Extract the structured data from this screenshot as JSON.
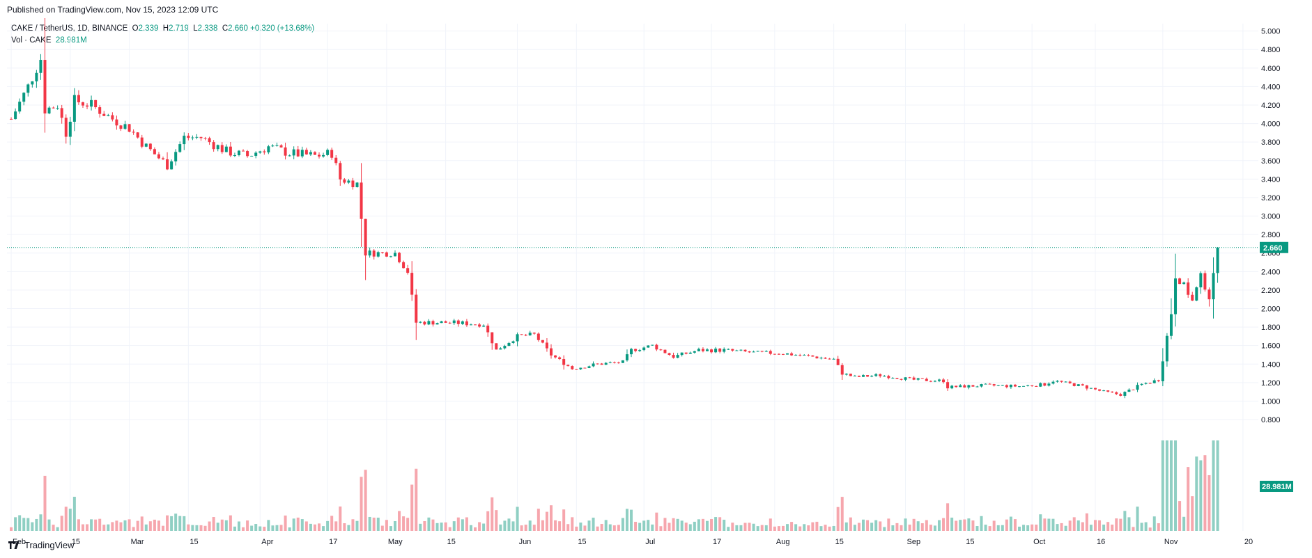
{
  "header": {
    "published": "Published on TradingView.com, Nov 15, 2023 12:09 UTC"
  },
  "legend": {
    "symbol": "CAKE / TetherUS, 1D, BINANCE",
    "o_label": "O",
    "o_value": "2.339",
    "h_label": "H",
    "h_value": "2.719",
    "l_label": "L",
    "l_value": "2.338",
    "c_label": "C",
    "c_value": "2.660",
    "change": "+0.320 (+13.68%)",
    "vol_label": "Vol · CAKE",
    "vol_value": "28.981M"
  },
  "footer": {
    "brand": "TradingView"
  },
  "colors": {
    "up": "#089981",
    "down": "#f23645",
    "up_vol": "#8fcfc3",
    "down_vol": "#f6a6ad",
    "grid": "#f0f3fa",
    "last_price_tag": "#089981"
  },
  "chart_data": {
    "type": "candlestick",
    "symbol": "CAKE / TetherUS",
    "interval": "1D",
    "exchange": "BINANCE",
    "y_axis": {
      "ticks": [
        "5.000",
        "4.800",
        "4.600",
        "4.400",
        "4.200",
        "4.000",
        "3.800",
        "3.600",
        "3.400",
        "3.200",
        "3.000",
        "2.800",
        "2.600",
        "2.400",
        "2.200",
        "2.000",
        "1.800",
        "1.600",
        "1.400",
        "1.200",
        "1.000",
        "0.800"
      ],
      "range": [
        0.68,
        5.08
      ]
    },
    "x_axis": {
      "ticks": [
        "Feb",
        "15",
        "Mar",
        "15",
        "Apr",
        "17",
        "May",
        "15",
        "Jun",
        "15",
        "Jul",
        "17",
        "Aug",
        "15",
        "Sep",
        "15",
        "Oct",
        "16",
        "Nov",
        "20"
      ]
    },
    "last_price": "2.660",
    "last_volume": "28.981M",
    "close_series": [
      {
        "date": "2023-02-01",
        "close": 4.05
      },
      {
        "date": "2023-02-05",
        "close": 4.4
      },
      {
        "date": "2023-02-08",
        "close": 4.7
      },
      {
        "date": "2023-02-09",
        "close": 4.15
      },
      {
        "date": "2023-02-12",
        "close": 4.2
      },
      {
        "date": "2023-02-14",
        "close": 3.9
      },
      {
        "date": "2023-02-16",
        "close": 4.25
      },
      {
        "date": "2023-02-20",
        "close": 4.2
      },
      {
        "date": "2023-02-25",
        "close": 4.05
      },
      {
        "date": "2023-03-01",
        "close": 3.95
      },
      {
        "date": "2023-03-05",
        "close": 3.75
      },
      {
        "date": "2023-03-10",
        "close": 3.55
      },
      {
        "date": "2023-03-14",
        "close": 3.85
      },
      {
        "date": "2023-03-18",
        "close": 3.85
      },
      {
        "date": "2023-03-24",
        "close": 3.7
      },
      {
        "date": "2023-03-29",
        "close": 3.65
      },
      {
        "date": "2023-04-03",
        "close": 3.75
      },
      {
        "date": "2023-04-08",
        "close": 3.68
      },
      {
        "date": "2023-04-14",
        "close": 3.65
      },
      {
        "date": "2023-04-18",
        "close": 3.68
      },
      {
        "date": "2023-04-20",
        "close": 3.4
      },
      {
        "date": "2023-04-24",
        "close": 3.35
      },
      {
        "date": "2023-04-26",
        "close": 2.6
      },
      {
        "date": "2023-04-30",
        "close": 2.6
      },
      {
        "date": "2023-05-03",
        "close": 2.6
      },
      {
        "date": "2023-05-06",
        "close": 2.4
      },
      {
        "date": "2023-05-08",
        "close": 1.85
      },
      {
        "date": "2023-05-15",
        "close": 1.85
      },
      {
        "date": "2023-05-24",
        "close": 1.83
      },
      {
        "date": "2023-05-27",
        "close": 1.55
      },
      {
        "date": "2023-06-01",
        "close": 1.7
      },
      {
        "date": "2023-06-05",
        "close": 1.72
      },
      {
        "date": "2023-06-09",
        "close": 1.5
      },
      {
        "date": "2023-06-14",
        "close": 1.35
      },
      {
        "date": "2023-06-20",
        "close": 1.4
      },
      {
        "date": "2023-06-26",
        "close": 1.42
      },
      {
        "date": "2023-06-28",
        "close": 1.55
      },
      {
        "date": "2023-07-03",
        "close": 1.6
      },
      {
        "date": "2023-07-08",
        "close": 1.48
      },
      {
        "date": "2023-07-14",
        "close": 1.55
      },
      {
        "date": "2023-07-20",
        "close": 1.55
      },
      {
        "date": "2023-07-28",
        "close": 1.52
      },
      {
        "date": "2023-08-02",
        "close": 1.52
      },
      {
        "date": "2023-08-10",
        "close": 1.48
      },
      {
        "date": "2023-08-15",
        "close": 1.45
      },
      {
        "date": "2023-08-17",
        "close": 1.3
      },
      {
        "date": "2023-08-20",
        "close": 1.26
      },
      {
        "date": "2023-08-26",
        "close": 1.28
      },
      {
        "date": "2023-09-03",
        "close": 1.23
      },
      {
        "date": "2023-09-10",
        "close": 1.22
      },
      {
        "date": "2023-09-11",
        "close": 1.15
      },
      {
        "date": "2023-09-20",
        "close": 1.17
      },
      {
        "date": "2023-09-28",
        "close": 1.16
      },
      {
        "date": "2023-10-04",
        "close": 1.18
      },
      {
        "date": "2023-10-06",
        "close": 1.22
      },
      {
        "date": "2023-10-13",
        "close": 1.16
      },
      {
        "date": "2023-10-18",
        "close": 1.1
      },
      {
        "date": "2023-10-22",
        "close": 1.07
      },
      {
        "date": "2023-10-27",
        "close": 1.18
      },
      {
        "date": "2023-10-31",
        "close": 1.23
      },
      {
        "date": "2023-11-01",
        "close": 1.45
      },
      {
        "date": "2023-11-02",
        "close": 1.7
      },
      {
        "date": "2023-11-03",
        "close": 1.95
      },
      {
        "date": "2023-11-04",
        "close": 2.35
      },
      {
        "date": "2023-11-06",
        "close": 2.25
      },
      {
        "date": "2023-11-08",
        "close": 2.08
      },
      {
        "date": "2023-11-10",
        "close": 2.35
      },
      {
        "date": "2023-11-12",
        "close": 2.12
      },
      {
        "date": "2023-11-13",
        "close": 2.35
      },
      {
        "date": "2023-11-14",
        "close": 2.66
      }
    ]
  }
}
